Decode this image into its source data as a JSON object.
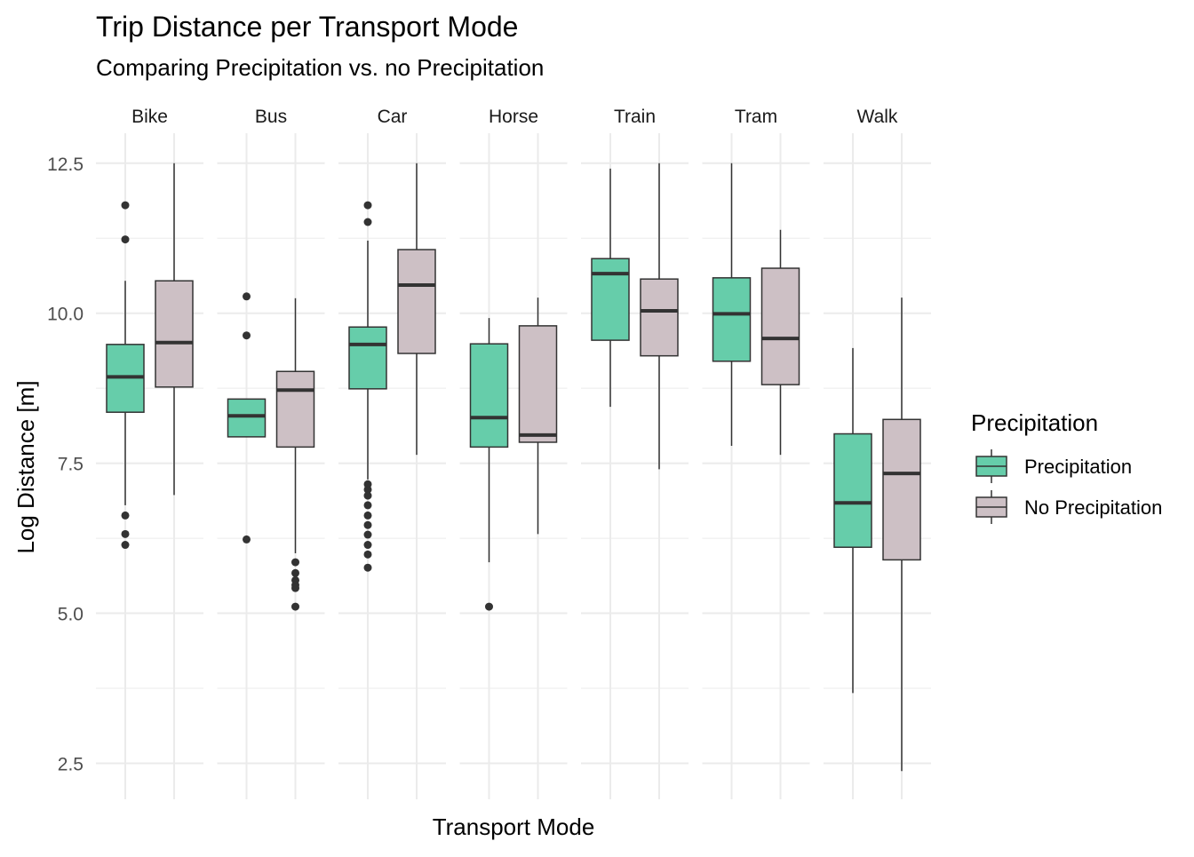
{
  "chart_data": {
    "type": "boxplot",
    "title": "Trip Distance per Transport Mode",
    "subtitle": "Comparing Precipitation vs. no Precipitation",
    "xlabel": "Transport Mode",
    "ylabel": "Log Distance [m]",
    "ylim": [
      1.9,
      13.0
    ],
    "yticks": [
      "2.5",
      "5.0",
      "7.5",
      "10.0",
      "12.5"
    ],
    "ytick_values": [
      2.5,
      5.0,
      7.5,
      10.0,
      12.5
    ],
    "grid": true,
    "legend": {
      "title": "Precipitation",
      "position": "right",
      "entries": [
        "Precipitation",
        "No Precipitation"
      ]
    },
    "colors": {
      "Precipitation": "#66CDAA",
      "No Precipitation": "#CDC0C5"
    },
    "facets": [
      {
        "label": "Bike",
        "boxes": [
          {
            "group": "Precipitation",
            "whisker_low": 6.8,
            "q1": 8.35,
            "median": 8.94,
            "q3": 9.48,
            "whisker_high": 10.54,
            "outliers": [
              11.8,
              11.23,
              6.63,
              6.32,
              6.14
            ]
          },
          {
            "group": "No Precipitation",
            "whisker_low": 6.97,
            "q1": 8.77,
            "median": 9.51,
            "q3": 10.54,
            "whisker_high": 12.5,
            "outliers": []
          }
        ]
      },
      {
        "label": "Bus",
        "boxes": [
          {
            "group": "Precipitation",
            "whisker_low": 7.94,
            "q1": 7.94,
            "median": 8.29,
            "q3": 8.57,
            "whisker_high": 8.57,
            "outliers": [
              10.28,
              9.63,
              6.23
            ]
          },
          {
            "group": "No Precipitation",
            "whisker_low": 6.0,
            "q1": 7.77,
            "median": 8.72,
            "q3": 9.03,
            "whisker_high": 10.25,
            "outliers": [
              5.85,
              5.67,
              5.55,
              5.47,
              5.42,
              5.11
            ]
          }
        ]
      },
      {
        "label": "Car",
        "boxes": [
          {
            "group": "Precipitation",
            "whisker_low": 7.23,
            "q1": 8.74,
            "median": 9.48,
            "q3": 9.77,
            "whisker_high": 11.21,
            "outliers": [
              11.8,
              11.52,
              7.15,
              7.06,
              6.96,
              6.8,
              6.63,
              6.47,
              6.31,
              6.14,
              5.98,
              5.76
            ]
          },
          {
            "group": "No Precipitation",
            "whisker_low": 7.64,
            "q1": 9.33,
            "median": 10.47,
            "q3": 11.06,
            "whisker_high": 12.5,
            "outliers": []
          }
        ]
      },
      {
        "label": "Horse",
        "boxes": [
          {
            "group": "Precipitation",
            "whisker_low": 5.85,
            "q1": 7.77,
            "median": 8.26,
            "q3": 9.49,
            "whisker_high": 9.92,
            "outliers": [
              5.11
            ]
          },
          {
            "group": "No Precipitation",
            "whisker_low": 6.32,
            "q1": 7.85,
            "median": 7.97,
            "q3": 9.79,
            "whisker_high": 10.26,
            "outliers": []
          }
        ]
      },
      {
        "label": "Train",
        "boxes": [
          {
            "group": "Precipitation",
            "whisker_low": 8.44,
            "q1": 9.55,
            "median": 10.66,
            "q3": 10.91,
            "whisker_high": 12.41,
            "outliers": []
          },
          {
            "group": "No Precipitation",
            "whisker_low": 7.4,
            "q1": 9.29,
            "median": 10.04,
            "q3": 10.57,
            "whisker_high": 12.5,
            "outliers": []
          }
        ]
      },
      {
        "label": "Tram",
        "boxes": [
          {
            "group": "Precipitation",
            "whisker_low": 7.79,
            "q1": 9.2,
            "median": 9.99,
            "q3": 10.59,
            "whisker_high": 12.5,
            "outliers": []
          },
          {
            "group": "No Precipitation",
            "whisker_low": 7.64,
            "q1": 8.81,
            "median": 9.58,
            "q3": 10.75,
            "whisker_high": 11.39,
            "outliers": []
          }
        ]
      },
      {
        "label": "Walk",
        "boxes": [
          {
            "group": "Precipitation",
            "whisker_low": 3.67,
            "q1": 6.1,
            "median": 6.84,
            "q3": 7.99,
            "whisker_high": 9.42,
            "outliers": []
          },
          {
            "group": "No Precipitation",
            "whisker_low": 2.37,
            "q1": 5.89,
            "median": 7.33,
            "q3": 8.23,
            "whisker_high": 10.26,
            "outliers": []
          }
        ]
      }
    ]
  }
}
